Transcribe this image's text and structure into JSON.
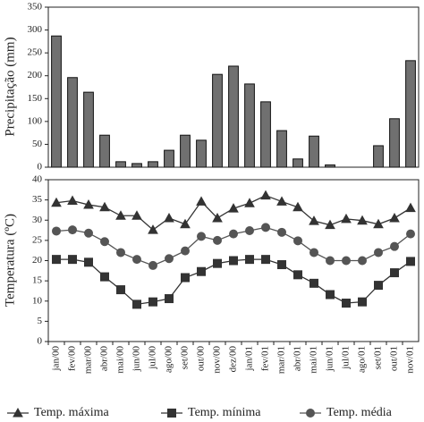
{
  "chart_data": [
    {
      "type": "bar",
      "y_label": "Precipitação (mm)",
      "categories": [
        "jan/00",
        "fev/00",
        "mar/00",
        "abr/00",
        "mai/00",
        "jun/00",
        "jul/00",
        "ago/00",
        "set/00",
        "out/00",
        "nov/00",
        "dez/00",
        "jan/01",
        "fev/01",
        "mar/01",
        "abr/01",
        "mai/01",
        "jun/01",
        "jul/01",
        "ago/01",
        "set/01",
        "out/01",
        "nov/01"
      ],
      "values": [
        287,
        196,
        164,
        70,
        12,
        8,
        12,
        37,
        70,
        59,
        203,
        221,
        182,
        143,
        80,
        18,
        68,
        5,
        0,
        0,
        47,
        106,
        233
      ],
      "color": "#707070",
      "ylim": [
        0,
        350
      ],
      "yticks": [
        0,
        50,
        100,
        150,
        200,
        250,
        300,
        350
      ]
    },
    {
      "type": "line",
      "y_label": "Temperatura (ºC)",
      "categories": [
        "jan/00",
        "fev/00",
        "mar/00",
        "abr/00",
        "mai/00",
        "jun/00",
        "jul/00",
        "ago/00",
        "set/00",
        "out/00",
        "nov/00",
        "dez/00",
        "jan/01",
        "fev/01",
        "mar/01",
        "abr/01",
        "mai/01",
        "jun/01",
        "jul/01",
        "ago/01",
        "set/01",
        "out/01",
        "nov/01"
      ],
      "series": [
        {
          "name": "Temp. máxima",
          "color": "#333333",
          "marker": "triangle",
          "values": [
            34.3,
            34.8,
            33.8,
            33.2,
            31.1,
            31.1,
            27.6,
            30.5,
            29,
            34.6,
            30.5,
            32.9,
            34.2,
            36.1,
            34.6,
            33.2,
            29.8,
            28.8,
            30.3,
            29.9,
            29,
            30.5,
            33
          ]
        },
        {
          "name": "Temp. mínima",
          "color": "#333333",
          "marker": "square",
          "values": [
            20.3,
            20.3,
            19.6,
            16,
            12.8,
            9.2,
            9.8,
            10.6,
            15.8,
            17.3,
            19.3,
            20,
            20.3,
            20.3,
            19,
            16.5,
            14.4,
            11.6,
            9.5,
            9.8,
            13.9,
            17,
            19.8
          ]
        },
        {
          "name": "Temp. média",
          "color": "#555555",
          "marker": "circle",
          "values": [
            27.3,
            27.6,
            26.8,
            24.7,
            22,
            20.3,
            18.8,
            20.5,
            22.4,
            26,
            25,
            26.6,
            27.4,
            28.2,
            27,
            24.9,
            22,
            20,
            20,
            20,
            22,
            23.5,
            26.6
          ]
        }
      ],
      "ylim": [
        0,
        40
      ],
      "yticks": [
        0,
        5,
        10,
        15,
        20,
        25,
        30,
        35,
        40
      ]
    }
  ]
}
